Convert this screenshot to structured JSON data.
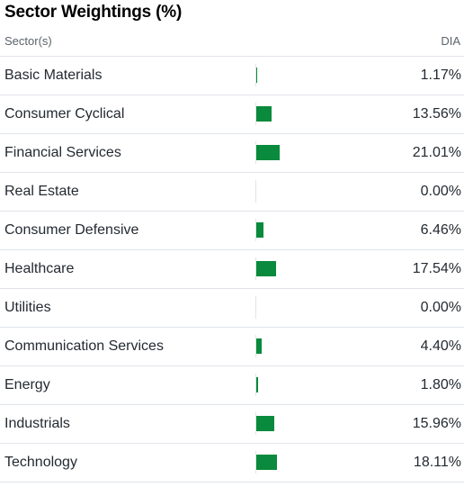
{
  "title": "Sector Weightings (%)",
  "header": {
    "label": "Sector(s)",
    "column": "DIA"
  },
  "colors": {
    "bar": "#0a8a3c",
    "divider": "#e0e4e9",
    "text": "#232a31",
    "muted": "#5b636a"
  },
  "sectors": [
    {
      "name": "Basic Materials",
      "value": "1.17%",
      "weight": 1.17
    },
    {
      "name": "Consumer Cyclical",
      "value": "13.56%",
      "weight": 13.56
    },
    {
      "name": "Financial Services",
      "value": "21.01%",
      "weight": 21.01
    },
    {
      "name": "Real Estate",
      "value": "0.00%",
      "weight": 0
    },
    {
      "name": "Consumer Defensive",
      "value": "6.46%",
      "weight": 6.46
    },
    {
      "name": "Healthcare",
      "value": "17.54%",
      "weight": 17.54
    },
    {
      "name": "Utilities",
      "value": "0.00%",
      "weight": 0
    },
    {
      "name": "Communication Services",
      "value": "4.40%",
      "weight": 4.4
    },
    {
      "name": "Energy",
      "value": "1.80%",
      "weight": 1.8
    },
    {
      "name": "Industrials",
      "value": "15.96%",
      "weight": 15.96
    },
    {
      "name": "Technology",
      "value": "18.11%",
      "weight": 18.11
    }
  ]
}
